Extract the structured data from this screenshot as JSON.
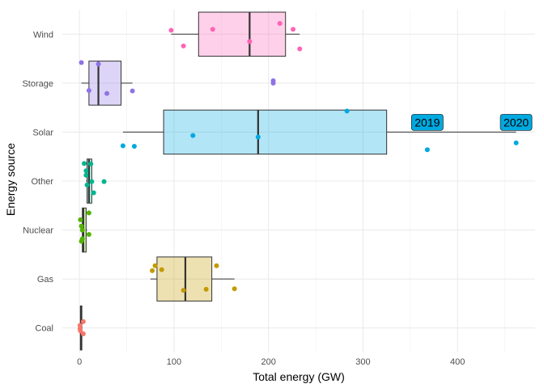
{
  "chart_data": {
    "type": "boxplot",
    "orientation": "horizontal",
    "xlabel": "Total energy (GW)",
    "ylabel": "Energy source",
    "xlim": [
      -4,
      482
    ],
    "x_ticks": [
      0,
      100,
      200,
      300,
      400
    ],
    "x_tick_labels": [
      "0",
      "100",
      "200",
      "300",
      "400"
    ],
    "grid": true,
    "legend": "none",
    "categories": [
      "Coal",
      "Gas",
      "Nuclear",
      "Other",
      "Solar",
      "Storage",
      "Wind"
    ],
    "series": [
      {
        "category": "Coal",
        "color": "#F8766D",
        "box": {
          "min": 0.5,
          "q1": 1,
          "median": 1.5,
          "q3": 2.5,
          "max": 3
        },
        "points": [
          [
            4,
            -0.13
          ],
          [
            0.5,
            -0.05
          ],
          [
            0.5,
            0.02
          ],
          [
            1,
            0.06
          ],
          [
            4,
            0.12
          ]
        ]
      },
      {
        "category": "Gas",
        "color": "#C49A00",
        "box": {
          "min": 75,
          "q1": 82,
          "median": 112,
          "q3": 140,
          "max": 164
        },
        "points": [
          [
            77,
            -0.17
          ],
          [
            80,
            -0.27
          ],
          [
            87,
            -0.19
          ],
          [
            110,
            0.23
          ],
          [
            134,
            0.21
          ],
          [
            145,
            -0.27
          ],
          [
            164,
            0.2
          ]
        ]
      },
      {
        "category": "Nuclear",
        "color": "#53B400",
        "box": {
          "min": 1,
          "q1": 3,
          "median": 4,
          "q3": 7,
          "max": 8
        },
        "points": [
          [
            1,
            -0.21
          ],
          [
            10,
            -0.35
          ],
          [
            2,
            -0.08
          ],
          [
            3,
            0.0
          ],
          [
            10,
            0.09
          ],
          [
            3,
            0.18
          ],
          [
            2,
            0.23
          ]
        ]
      },
      {
        "category": "Other",
        "color": "#00B58F",
        "box": {
          "min": 7,
          "q1": 8,
          "median": 10,
          "q3": 13,
          "max": 14
        },
        "points": [
          [
            5,
            -0.36
          ],
          [
            12,
            -0.35
          ],
          [
            7,
            -0.21
          ],
          [
            7,
            -0.12
          ],
          [
            13,
            0.01
          ],
          [
            26,
            0.01
          ],
          [
            8,
            0.08
          ],
          [
            15,
            0.24
          ]
        ]
      },
      {
        "category": "Solar",
        "color": "#00A9E0",
        "box": {
          "min": 46,
          "q1": 89,
          "median": 189,
          "q3": 325,
          "max": 462
        },
        "points": [
          [
            283,
            -0.43
          ],
          [
            120,
            0.07
          ],
          [
            189,
            0.1
          ],
          [
            46,
            0.28
          ],
          [
            58,
            0.29
          ],
          [
            368,
            0.36
          ],
          [
            462,
            0.22
          ]
        ],
        "annotations": [
          {
            "label": "2019",
            "x": 368
          },
          {
            "label": "2020",
            "x": 462
          }
        ]
      },
      {
        "category": "Storage",
        "color": "#8F73E6",
        "box": {
          "min": 2,
          "q1": 10,
          "median": 20,
          "q3": 44,
          "max": 56
        },
        "points": [
          [
            2,
            -0.42
          ],
          [
            20,
            -0.39
          ],
          [
            205,
            -0.05
          ],
          [
            205,
            0.0
          ],
          [
            10,
            0.15
          ],
          [
            56,
            0.16
          ],
          [
            29,
            0.21
          ]
        ]
      },
      {
        "category": "Wind",
        "color": "#FF63B6",
        "box": {
          "min": 97,
          "q1": 126,
          "median": 180,
          "q3": 218,
          "max": 233
        },
        "points": [
          [
            212,
            -0.22
          ],
          [
            141,
            -0.1
          ],
          [
            226,
            -0.1
          ],
          [
            97,
            -0.08
          ],
          [
            180,
            0.15
          ],
          [
            110,
            0.24
          ],
          [
            233,
            0.3
          ]
        ]
      }
    ]
  }
}
